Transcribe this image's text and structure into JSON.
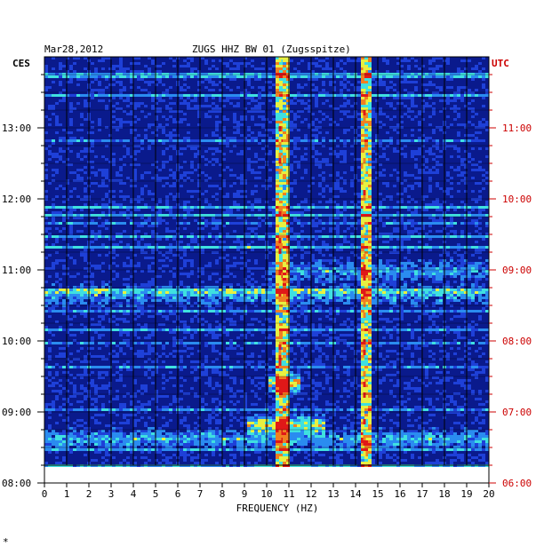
{
  "header": {
    "date": "Mar28,2012",
    "station": "ZUGS HHZ BW 01 (Zugsspitze)",
    "left_zone": "CES",
    "right_zone": "UTC",
    "footer_mark": "*"
  },
  "colors": {
    "background_blue": "#1a2f9e",
    "gridline": "#000000",
    "utc_text": "#cc0000",
    "local_text": "#000000"
  },
  "chart_data": {
    "type": "heatmap",
    "title": "ZUGS HHZ BW 01 (Zugsspitze)",
    "xlabel": "FREQUENCY (HZ)",
    "ylabel": "",
    "xlim": [
      0,
      20
    ],
    "x_ticks": [
      "0",
      "1",
      "2",
      "3",
      "4",
      "5",
      "6",
      "7",
      "8",
      "9",
      "10",
      "11",
      "12",
      "13",
      "14",
      "15",
      "16",
      "17",
      "18",
      "19",
      "20"
    ],
    "y_ticks_left": [
      "13:00",
      "12:00",
      "11:00",
      "10:00",
      "09:00",
      "08:00"
    ],
    "y_ticks_right": [
      "11:00",
      "10:00",
      "09:00",
      "08:00",
      "07:00",
      "06:00"
    ],
    "time_range_local": [
      "08:00",
      "13:45"
    ],
    "colormap": [
      "#0a1a8c",
      "#1e40d8",
      "#2a8cf0",
      "#3fe0e0",
      "#e8f040",
      "#f08020",
      "#e01818"
    ],
    "persistent_lines_hz": [
      10.6,
      14.4
    ],
    "activity_bursts": [
      {
        "time_local": "08:50",
        "freq_range_hz": [
          9.0,
          12.5
        ],
        "intensity": 0.6
      },
      {
        "time_local": "09:25",
        "freq_range_hz": [
          10.0,
          11.5
        ],
        "intensity": 0.7
      },
      {
        "time_local": "08:38",
        "freq_range_hz": [
          0.0,
          20.0
        ],
        "intensity": 0.35
      },
      {
        "time_local": "10:40",
        "freq_range_hz": [
          0.0,
          20.0
        ],
        "intensity": 0.3
      },
      {
        "time_local": "11:00",
        "freq_range_hz": [
          10.0,
          20.0
        ],
        "intensity": 0.3
      }
    ]
  }
}
